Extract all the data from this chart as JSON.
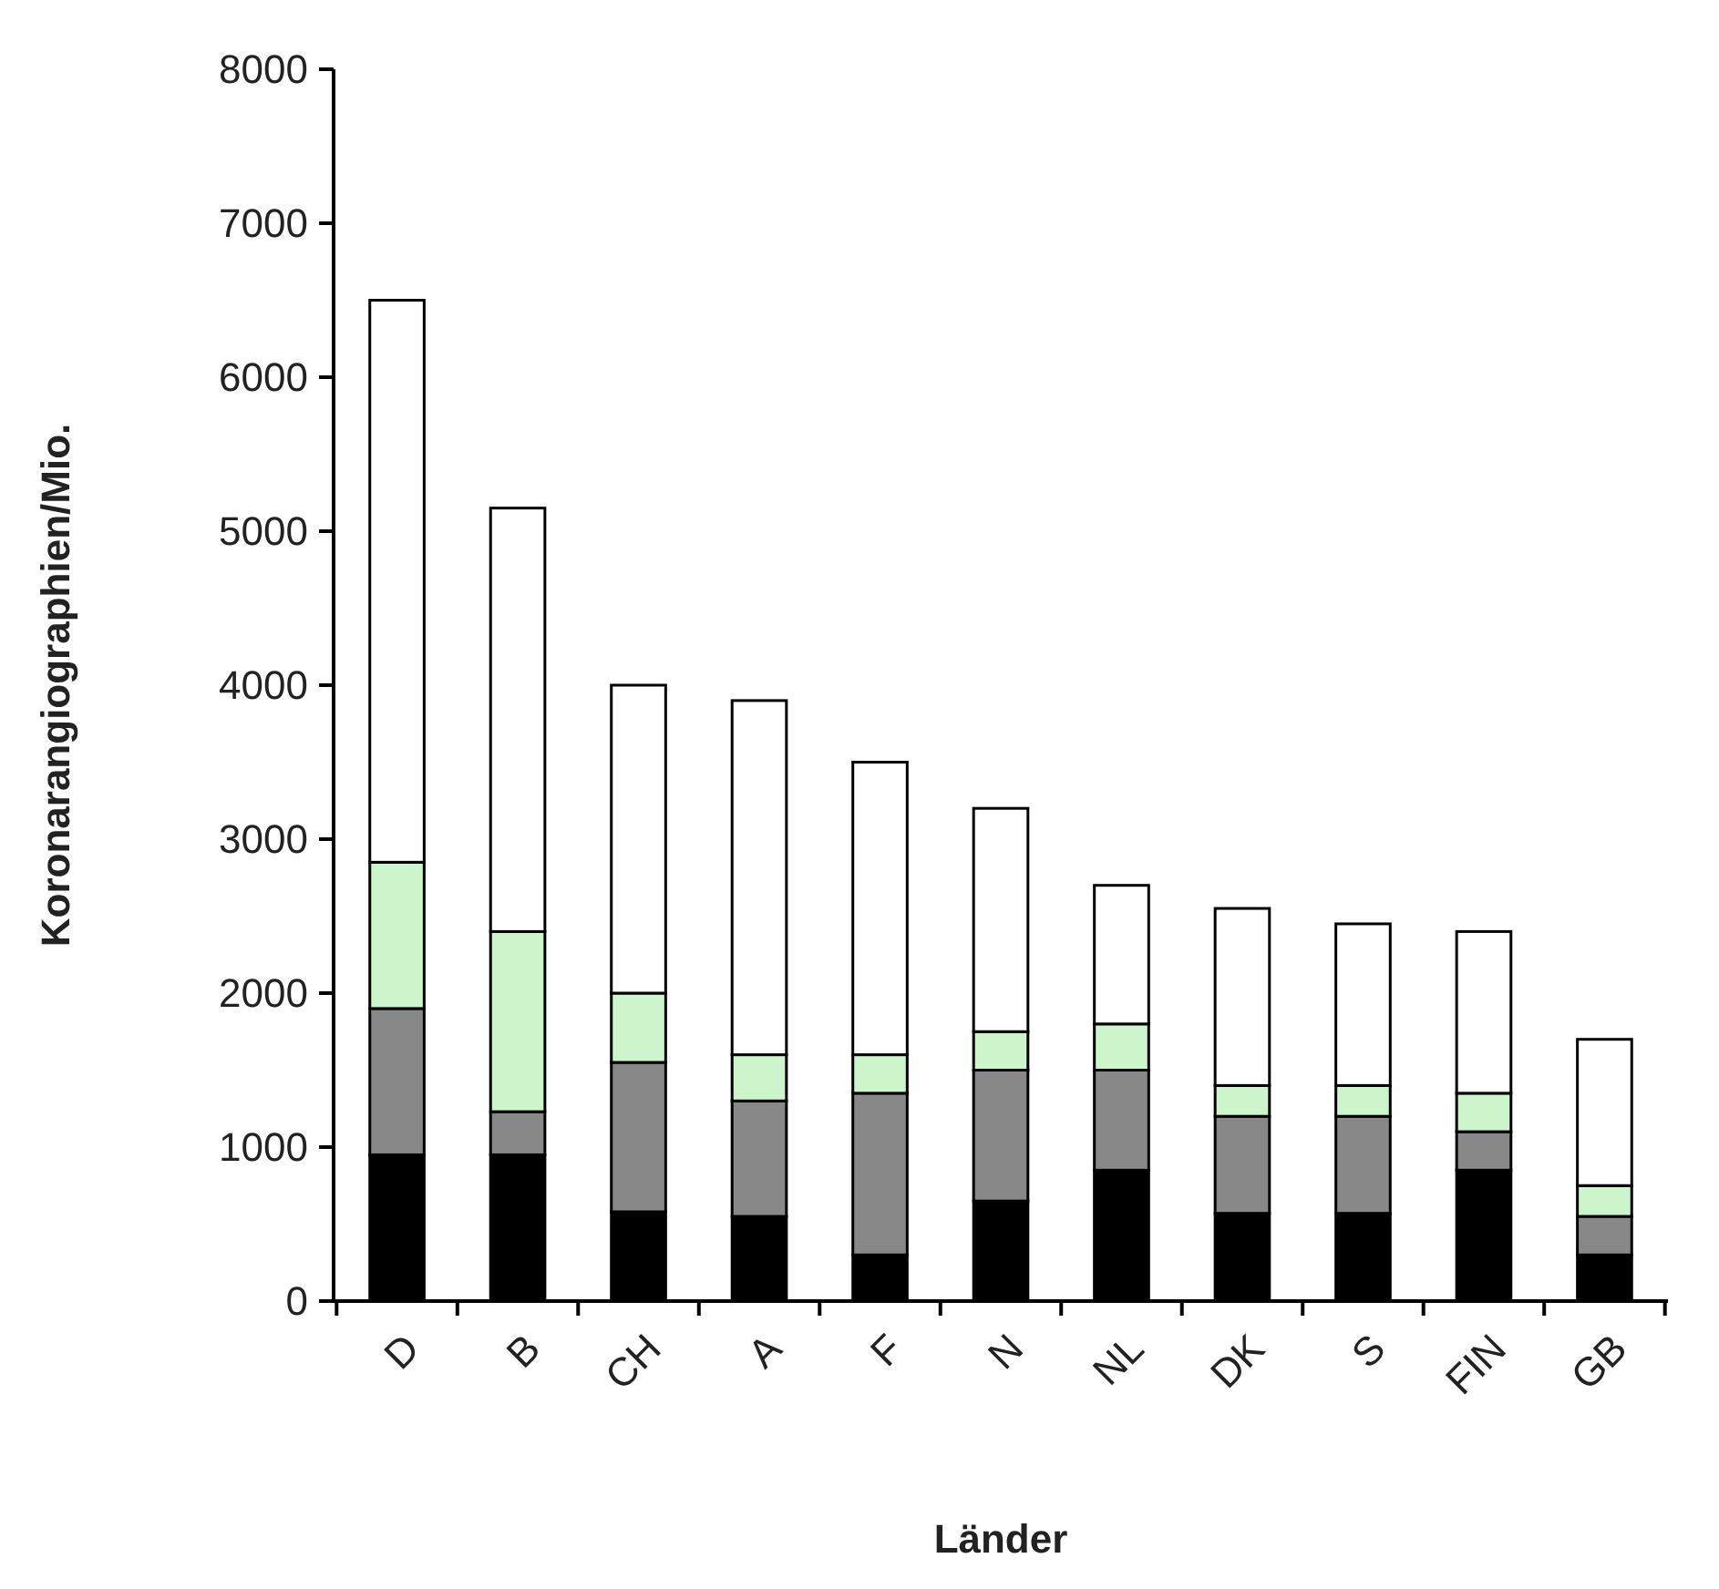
{
  "chart_data": {
    "type": "bar",
    "stacked": true,
    "xlabel": "Länder",
    "ylabel": "Koronarangiographien/Mio.",
    "categories": [
      "D",
      "B",
      "CH",
      "A",
      "F",
      "N",
      "NL",
      "DK",
      "S",
      "FIN",
      "GB"
    ],
    "series": [
      {
        "color": "#000000",
        "values": [
          950,
          950,
          580,
          550,
          300,
          650,
          850,
          570,
          570,
          850,
          300
        ]
      },
      {
        "color": "#888888",
        "values": [
          950,
          280,
          970,
          750,
          1050,
          850,
          650,
          630,
          630,
          250,
          250
        ]
      },
      {
        "color": "#ccf5cc",
        "values": [
          950,
          1170,
          450,
          300,
          250,
          250,
          300,
          200,
          200,
          250,
          200
        ]
      },
      {
        "color": "#ffffff",
        "values": [
          3650,
          2750,
          2000,
          2300,
          1900,
          1450,
          900,
          1150,
          1050,
          1050,
          950
        ]
      }
    ],
    "ylim": [
      0,
      8000
    ],
    "yticks": [
      0,
      1000,
      2000,
      3000,
      4000,
      5000,
      6000,
      7000,
      8000
    ],
    "grid": false
  }
}
